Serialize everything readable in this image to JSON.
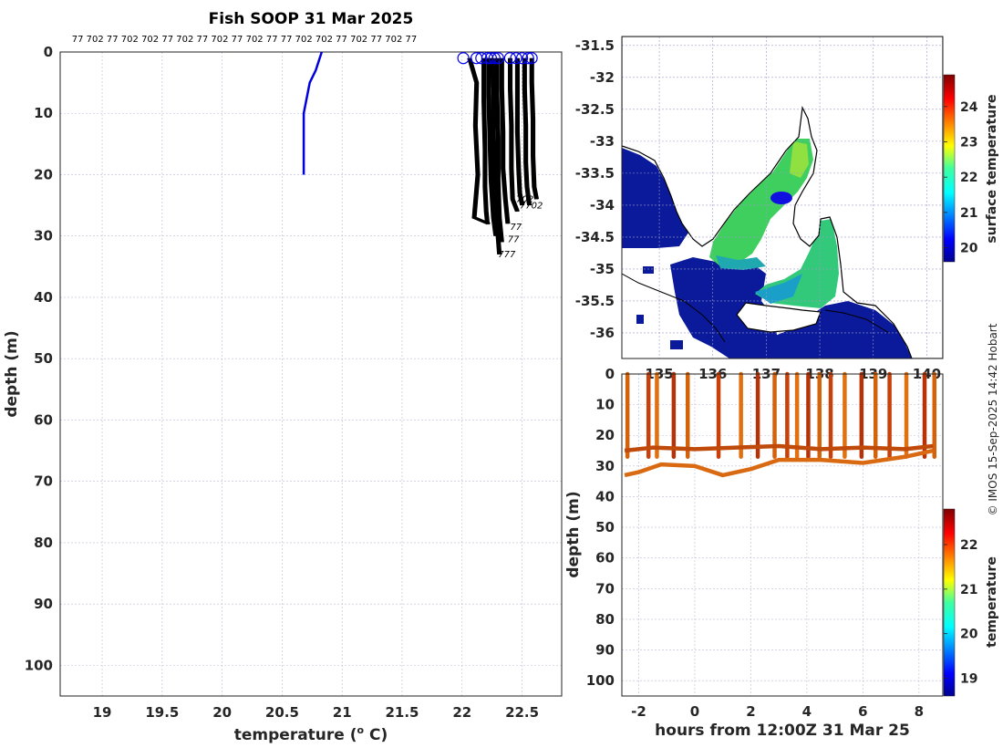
{
  "chart_data": [
    {
      "type": "line",
      "title": "Fish SOOP 31 Mar 2025",
      "xlabel": "temperature (",
      "xlabel_sup": "o",
      "xlabel_unit": " C)",
      "ylabel": "depth (m)",
      "xlim": [
        18.65,
        22.83
      ],
      "ylim": [
        105,
        0
      ],
      "xticks": [
        "19",
        "19.5",
        "20",
        "20.5",
        "21",
        "21.5",
        "22",
        "22.5"
      ],
      "xtick_values": [
        19,
        19.5,
        20,
        20.5,
        21,
        21.5,
        22,
        22.5
      ],
      "yticks": [
        "0",
        "10",
        "20",
        "30",
        "40",
        "50",
        "60",
        "70",
        "80",
        "90",
        "100"
      ],
      "ytick_values": [
        0,
        10,
        20,
        30,
        40,
        50,
        60,
        70,
        80,
        90,
        100
      ],
      "grid": true,
      "top_labels": "77 702 77 702 702 77 702 77 702 77 702 77 77 702 702 77 702 77 702 77",
      "series": [
        {
          "color": "#0000dd",
          "x": [
            20.83,
            20.78,
            20.73,
            20.68,
            20.68,
            20.68
          ],
          "y": [
            0,
            3,
            5,
            10,
            15,
            20
          ]
        },
        {
          "color": "#000000",
          "profiles": [
            {
              "x": [
                22.06,
                22.12,
                22.11,
                22.13,
                22.1,
                22.22
              ],
              "y": [
                1,
                5,
                12,
                20,
                27,
                28
              ]
            },
            {
              "x": [
                22.18,
                22.18,
                22.19,
                22.19,
                22.2,
                22.21
              ],
              "y": [
                1,
                8,
                16,
                22,
                26,
                28
              ]
            },
            {
              "x": [
                22.22,
                22.22,
                22.23,
                22.24,
                22.26,
                22.28
              ],
              "y": [
                1,
                7,
                14,
                21,
                27,
                30
              ]
            },
            {
              "x": [
                22.25,
                22.26,
                22.26,
                22.27,
                22.29,
                22.31
              ],
              "y": [
                1,
                6,
                13,
                20,
                28,
                33
              ]
            },
            {
              "x": [
                22.29,
                22.29,
                22.3,
                22.3,
                22.31,
                22.33
              ],
              "y": [
                1,
                7,
                14,
                21,
                27,
                31
              ]
            },
            {
              "x": [
                22.33,
                22.33,
                22.34,
                22.34,
                22.36,
                22.38
              ],
              "y": [
                1,
                6,
                13,
                19,
                24,
                28
              ]
            },
            {
              "x": [
                22.4,
                22.4,
                22.41,
                22.41,
                22.42,
                22.46
              ],
              "y": [
                1,
                6,
                12,
                19,
                24,
                26
              ]
            },
            {
              "x": [
                22.46,
                22.46,
                22.46,
                22.47,
                22.48,
                22.5
              ],
              "y": [
                1,
                7,
                13,
                19,
                23,
                25
              ]
            },
            {
              "x": [
                22.52,
                22.52,
                22.53,
                22.53,
                22.54,
                22.56
              ],
              "y": [
                1,
                6,
                12,
                18,
                22,
                25
              ]
            },
            {
              "x": [
                22.58,
                22.58,
                22.59,
                22.59,
                22.6,
                22.62
              ],
              "y": [
                1,
                5,
                11,
                17,
                22,
                24
              ]
            }
          ]
        }
      ],
      "surface_markers_x": [
        22.01,
        22.12,
        22.16,
        22.21,
        22.24,
        22.27,
        22.3,
        22.4,
        22.45,
        22.5,
        22.55,
        22.58
      ],
      "profile_end_labels": [
        {
          "text": "702",
          "x": 22.45,
          "y": 24.5
        },
        {
          "text": "7702",
          "x": 22.48,
          "y": 25.5
        },
        {
          "text": "77",
          "x": 22.4,
          "y": 29
        },
        {
          "text": "77",
          "x": 22.38,
          "y": 31
        },
        {
          "text": "777",
          "x": 22.3,
          "y": 33.5
        }
      ]
    },
    {
      "type": "heatmap",
      "subtype": "map",
      "yticks": [
        "-31.5",
        "-32",
        "-32.5",
        "-33",
        "-33.5",
        "-34",
        "-34.5",
        "-35",
        "-35.5",
        "-36"
      ],
      "ytick_values": [
        -31.5,
        -32,
        -32.5,
        -33,
        -33.5,
        -34,
        -34.5,
        -35,
        -35.5,
        -36
      ],
      "xticks": [
        "135",
        "136",
        "137",
        "138",
        "139",
        "140"
      ],
      "xtick_values": [
        135,
        136,
        137,
        138,
        139,
        140
      ],
      "xlim": [
        134.3,
        140.3
      ],
      "ylim": [
        -36.4,
        -31.36
      ],
      "colorbar_label": "surface temperature",
      "colorbar_ticks": [
        "20",
        "21",
        "22",
        "23",
        "24"
      ],
      "colorbar_tick_values": [
        20,
        21,
        22,
        23,
        24
      ],
      "colorbar_range": [
        19.6,
        24.9
      ],
      "grid": true
    },
    {
      "type": "scatter",
      "xlabel": "hours from 12:00Z 31 Mar 25",
      "ylabel": "depth (m)",
      "xlim": [
        -2.6,
        8.85
      ],
      "ylim": [
        105,
        0
      ],
      "xticks": [
        "-2",
        "0",
        "2",
        "4",
        "6",
        "8"
      ],
      "xtick_values": [
        -2,
        0,
        2,
        4,
        6,
        8
      ],
      "yticks": [
        "0",
        "10",
        "20",
        "30",
        "40",
        "50",
        "60",
        "70",
        "80",
        "90",
        "100"
      ],
      "ytick_values": [
        0,
        10,
        20,
        30,
        40,
        50,
        60,
        70,
        80,
        90,
        100
      ],
      "colorbar_label": "temperature",
      "colorbar_ticks": [
        "19",
        "20",
        "21",
        "22"
      ],
      "colorbar_tick_values": [
        19,
        20,
        21,
        22
      ],
      "colorbar_range": [
        18.6,
        22.8
      ],
      "grid": true,
      "casts_hours": [
        -2.4,
        -1.65,
        -1.35,
        -0.75,
        -0.25,
        0.85,
        1.65,
        2.25,
        2.85,
        3.3,
        3.65,
        4.05,
        4.45,
        4.85,
        5.35,
        5.95,
        6.45,
        6.95,
        7.55,
        8.2,
        8.55
      ],
      "bottom_upper_hours": [
        -2.5,
        -1.5,
        0,
        1.5,
        3,
        4.5,
        6,
        7.5,
        8.5
      ],
      "bottom_upper_depths": [
        25,
        24,
        24.5,
        24,
        23.5,
        24.5,
        24,
        24.5,
        23.5
      ],
      "bottom_lower_hours": [
        -2.5,
        -2,
        -1.2,
        0,
        1,
        2,
        3,
        4.5,
        6,
        7.5,
        8.5
      ],
      "bottom_lower_depths": [
        33,
        32,
        29.5,
        30,
        33,
        31,
        28,
        28,
        29,
        27,
        25
      ]
    }
  ],
  "copyright": "© IMOS 15-Sep-2025 14:42 Hobart"
}
